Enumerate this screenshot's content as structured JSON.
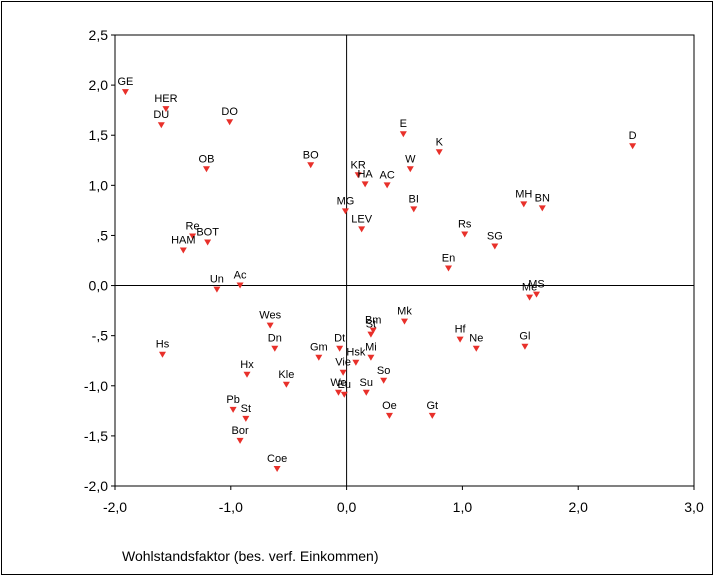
{
  "chart_data": {
    "type": "scatter",
    "title": "",
    "xlabel": "Wohlstandsfaktor (bes. verf. Einkommen)",
    "ylabel": "",
    "xlim": [
      -2.0,
      3.0
    ],
    "ylim": [
      -2.0,
      2.5
    ],
    "x_ticks": [
      "-2,0",
      "-1,0",
      "0,0",
      "1,0",
      "2,0",
      "3,0"
    ],
    "y_ticks": [
      "2,5",
      "2,0",
      "1,5",
      "1,0",
      ",5",
      "0,0",
      "-,5",
      "-1,0",
      "-1,5",
      "-2,0"
    ],
    "marker": "triangle-down",
    "marker_color": "#e8302a",
    "grid": false,
    "reference_lines": {
      "x": 0,
      "y": 0
    },
    "points": [
      {
        "label": "GE",
        "x": -1.91,
        "y": 1.93
      },
      {
        "label": "HER",
        "x": -1.56,
        "y": 1.76
      },
      {
        "label": "DU",
        "x": -1.6,
        "y": 1.6
      },
      {
        "label": "DO",
        "x": -1.01,
        "y": 1.63
      },
      {
        "label": "OB",
        "x": -1.21,
        "y": 1.16
      },
      {
        "label": "BO",
        "x": -0.31,
        "y": 1.2
      },
      {
        "label": "E",
        "x": 0.49,
        "y": 1.51
      },
      {
        "label": "K",
        "x": 0.8,
        "y": 1.33
      },
      {
        "label": "D",
        "x": 2.47,
        "y": 1.39
      },
      {
        "label": "KR",
        "x": 0.1,
        "y": 1.1
      },
      {
        "label": "HA",
        "x": 0.16,
        "y": 1.01
      },
      {
        "label": "AC",
        "x": 0.35,
        "y": 1.0
      },
      {
        "label": "W",
        "x": 0.55,
        "y": 1.16
      },
      {
        "label": "MG",
        "x": -0.01,
        "y": 0.74
      },
      {
        "label": "BI",
        "x": 0.58,
        "y": 0.76
      },
      {
        "label": "MH",
        "x": 1.53,
        "y": 0.81
      },
      {
        "label": "BN",
        "x": 1.69,
        "y": 0.77
      },
      {
        "label": "LEV",
        "x": 0.13,
        "y": 0.56
      },
      {
        "label": "Rs",
        "x": 1.02,
        "y": 0.51
      },
      {
        "label": "SG",
        "x": 1.28,
        "y": 0.39
      },
      {
        "label": "Re",
        "x": -1.33,
        "y": 0.49
      },
      {
        "label": "BOT",
        "x": -1.2,
        "y": 0.43
      },
      {
        "label": "HAM",
        "x": -1.41,
        "y": 0.35
      },
      {
        "label": "En",
        "x": 0.88,
        "y": 0.17
      },
      {
        "label": "Un",
        "x": -1.12,
        "y": -0.04
      },
      {
        "label": "Ac",
        "x": -0.92,
        "y": 0.0
      },
      {
        "label": "Me",
        "x": 1.58,
        "y": -0.12
      },
      {
        "label": "MS",
        "x": 1.64,
        "y": -0.09
      },
      {
        "label": "Wes",
        "x": -0.66,
        "y": -0.4
      },
      {
        "label": "Mk",
        "x": 0.5,
        "y": -0.36
      },
      {
        "label": "Bm",
        "x": 0.23,
        "y": -0.45
      },
      {
        "label": "St",
        "x": 0.21,
        "y": -0.49
      },
      {
        "label": "Dt",
        "x": -0.06,
        "y": -0.63
      },
      {
        "label": "Dn",
        "x": -0.62,
        "y": -0.63
      },
      {
        "label": "Gm",
        "x": -0.24,
        "y": -0.72
      },
      {
        "label": "Hf",
        "x": 0.98,
        "y": -0.54
      },
      {
        "label": "Ne",
        "x": 1.12,
        "y": -0.63
      },
      {
        "label": "Gl",
        "x": 1.54,
        "y": -0.61
      },
      {
        "label": "Hs",
        "x": -1.59,
        "y": -0.69
      },
      {
        "label": "Mi",
        "x": 0.21,
        "y": -0.72
      },
      {
        "label": "Hsk",
        "x": 0.08,
        "y": -0.77
      },
      {
        "label": "Vie",
        "x": -0.03,
        "y": -0.87
      },
      {
        "label": "So",
        "x": 0.32,
        "y": -0.95
      },
      {
        "label": "Hx",
        "x": -0.86,
        "y": -0.89
      },
      {
        "label": "Kle",
        "x": -0.52,
        "y": -0.99
      },
      {
        "label": "We",
        "x": -0.07,
        "y": -1.07
      },
      {
        "label": "Eu",
        "x": -0.02,
        "y": -1.09
      },
      {
        "label": "Su",
        "x": 0.17,
        "y": -1.07
      },
      {
        "label": "Pb",
        "x": -0.98,
        "y": -1.24
      },
      {
        "label": "St",
        "x": -0.87,
        "y": -1.33
      },
      {
        "label": "Oe",
        "x": 0.37,
        "y": -1.3
      },
      {
        "label": "Gt",
        "x": 0.74,
        "y": -1.3
      },
      {
        "label": "Bor",
        "x": -0.92,
        "y": -1.55
      },
      {
        "label": "Coe",
        "x": -0.6,
        "y": -1.83
      }
    ]
  }
}
